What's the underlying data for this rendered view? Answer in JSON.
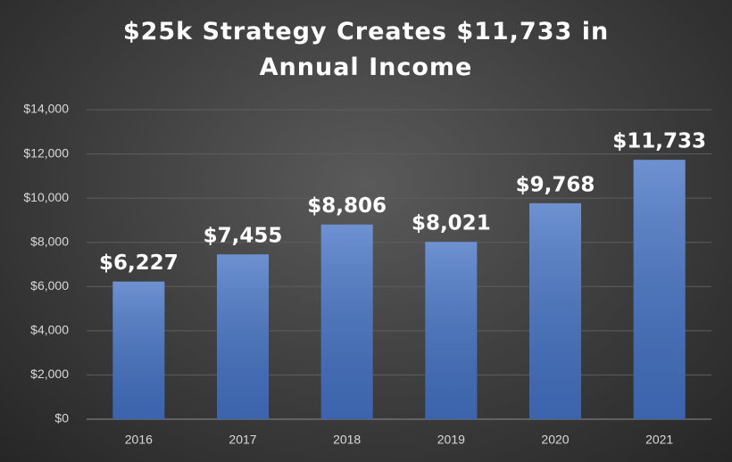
{
  "chart_data": {
    "type": "bar",
    "title": "$25k Strategy Creates $11,733 in Annual Income",
    "categories": [
      "2016",
      "2017",
      "2018",
      "2019",
      "2020",
      "2021"
    ],
    "values": [
      6227,
      7455,
      8806,
      8021,
      9768,
      11733
    ],
    "value_labels": [
      "$6,227",
      "$7,455",
      "$8,806",
      "$8,021",
      "$9,768",
      "$11,733"
    ],
    "color": "#4472c4",
    "ylim": [
      0,
      14000
    ],
    "yticks": [
      {
        "value": 0,
        "label": "$0"
      },
      {
        "value": 2000,
        "label": "$2,000"
      },
      {
        "value": 4000,
        "label": "$4,000"
      },
      {
        "value": 6000,
        "label": "$6,000"
      },
      {
        "value": 8000,
        "label": "$8,000"
      },
      {
        "value": 10000,
        "label": "$10,000"
      },
      {
        "value": 12000,
        "label": "$12,000"
      },
      {
        "value": 14000,
        "label": "$14,000"
      }
    ],
    "grid": true
  }
}
